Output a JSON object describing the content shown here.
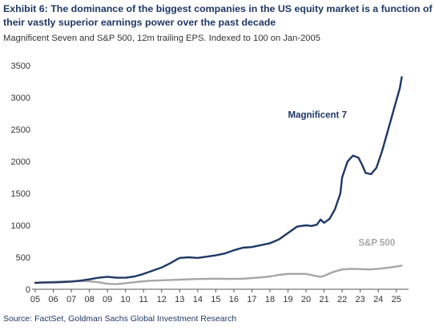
{
  "header": {
    "title": "Exhibit 6: The dominance of the biggest companies in the US equity market is a function of their vastly superior earnings power over the past decade",
    "subtitle": "Magnificent Seven and S&P 500, 12m trailing EPS. Indexed to 100 on Jan-2005"
  },
  "footer": {
    "source": "Source: FactSet, Goldman Sachs Global Investment Research"
  },
  "chart_data": {
    "type": "line",
    "title": "Exhibit 6: The dominance of the biggest companies in the US equity market is a function of their vastly superior earnings power over the past decade",
    "subtitle": "Magnificent Seven and S&P 500, 12m trailing EPS. Indexed to 100 on Jan-2005",
    "xlabel": "",
    "ylabel": "",
    "xlim": [
      2005,
      2025.5
    ],
    "ylim": [
      0,
      3500
    ],
    "yticks": [
      0,
      500,
      1000,
      1500,
      2000,
      2500,
      3000,
      3500
    ],
    "xticks": [
      2005,
      2006,
      2007,
      2008,
      2009,
      2010,
      2011,
      2012,
      2013,
      2014,
      2015,
      2016,
      2017,
      2018,
      2019,
      2020,
      2021,
      2022,
      2023,
      2024,
      2025
    ],
    "xtick_labels": [
      "05",
      "06",
      "07",
      "08",
      "09",
      "10",
      "11",
      "12",
      "13",
      "14",
      "15",
      "16",
      "17",
      "18",
      "19",
      "20",
      "21",
      "22",
      "23",
      "24",
      "25"
    ],
    "grid": false,
    "legend": "inline labels",
    "series": [
      {
        "name": "Magnificent 7",
        "color": "#1f3864",
        "points": [
          [
            2005.0,
            100
          ],
          [
            2005.5,
            105
          ],
          [
            2006.0,
            108
          ],
          [
            2006.5,
            112
          ],
          [
            2007.0,
            120
          ],
          [
            2007.5,
            135
          ],
          [
            2008.0,
            155
          ],
          [
            2008.5,
            180
          ],
          [
            2009.0,
            195
          ],
          [
            2009.5,
            180
          ],
          [
            2010.0,
            180
          ],
          [
            2010.5,
            200
          ],
          [
            2011.0,
            240
          ],
          [
            2011.5,
            290
          ],
          [
            2012.0,
            340
          ],
          [
            2012.5,
            410
          ],
          [
            2012.8,
            460
          ],
          [
            2013.0,
            490
          ],
          [
            2013.5,
            500
          ],
          [
            2014.0,
            490
          ],
          [
            2014.5,
            510
          ],
          [
            2015.0,
            530
          ],
          [
            2015.5,
            560
          ],
          [
            2016.0,
            610
          ],
          [
            2016.5,
            650
          ],
          [
            2017.0,
            660
          ],
          [
            2017.5,
            690
          ],
          [
            2018.0,
            720
          ],
          [
            2018.5,
            780
          ],
          [
            2019.0,
            880
          ],
          [
            2019.5,
            980
          ],
          [
            2020.0,
            1000
          ],
          [
            2020.3,
            990
          ],
          [
            2020.6,
            1010
          ],
          [
            2020.8,
            1090
          ],
          [
            2021.0,
            1040
          ],
          [
            2021.3,
            1100
          ],
          [
            2021.6,
            1250
          ],
          [
            2021.9,
            1500
          ],
          [
            2022.0,
            1750
          ],
          [
            2022.3,
            2000
          ],
          [
            2022.6,
            2090
          ],
          [
            2022.9,
            2060
          ],
          [
            2023.1,
            1950
          ],
          [
            2023.3,
            1820
          ],
          [
            2023.6,
            1800
          ],
          [
            2023.9,
            1900
          ],
          [
            2024.2,
            2150
          ],
          [
            2024.5,
            2450
          ],
          [
            2024.8,
            2750
          ],
          [
            2025.0,
            2950
          ],
          [
            2025.2,
            3150
          ],
          [
            2025.3,
            3320
          ]
        ]
      },
      {
        "name": "S&P 500",
        "color": "#a6a6a6",
        "points": [
          [
            2005.0,
            100
          ],
          [
            2005.5,
            110
          ],
          [
            2006.0,
            115
          ],
          [
            2006.5,
            120
          ],
          [
            2007.0,
            125
          ],
          [
            2007.5,
            128
          ],
          [
            2008.0,
            125
          ],
          [
            2008.5,
            110
          ],
          [
            2009.0,
            85
          ],
          [
            2009.5,
            80
          ],
          [
            2010.0,
            95
          ],
          [
            2010.5,
            110
          ],
          [
            2011.0,
            125
          ],
          [
            2011.5,
            135
          ],
          [
            2012.0,
            140
          ],
          [
            2012.5,
            145
          ],
          [
            2013.0,
            150
          ],
          [
            2013.5,
            155
          ],
          [
            2014.0,
            160
          ],
          [
            2014.5,
            163
          ],
          [
            2015.0,
            165
          ],
          [
            2015.5,
            163
          ],
          [
            2016.0,
            162
          ],
          [
            2016.5,
            165
          ],
          [
            2017.0,
            175
          ],
          [
            2017.5,
            185
          ],
          [
            2018.0,
            200
          ],
          [
            2018.5,
            225
          ],
          [
            2019.0,
            240
          ],
          [
            2019.5,
            240
          ],
          [
            2020.0,
            240
          ],
          [
            2020.5,
            210
          ],
          [
            2020.8,
            195
          ],
          [
            2021.0,
            210
          ],
          [
            2021.5,
            270
          ],
          [
            2022.0,
            310
          ],
          [
            2022.5,
            320
          ],
          [
            2023.0,
            315
          ],
          [
            2023.5,
            310
          ],
          [
            2024.0,
            320
          ],
          [
            2024.5,
            335
          ],
          [
            2025.0,
            355
          ],
          [
            2025.3,
            370
          ]
        ]
      }
    ],
    "annotations": [
      {
        "text": "Magnificent 7",
        "series": "Magnificent 7",
        "x": 2019.0,
        "y": 2680
      },
      {
        "text": "S&P 500",
        "series": "S&P 500",
        "x": 2022.9,
        "y": 680
      }
    ]
  }
}
